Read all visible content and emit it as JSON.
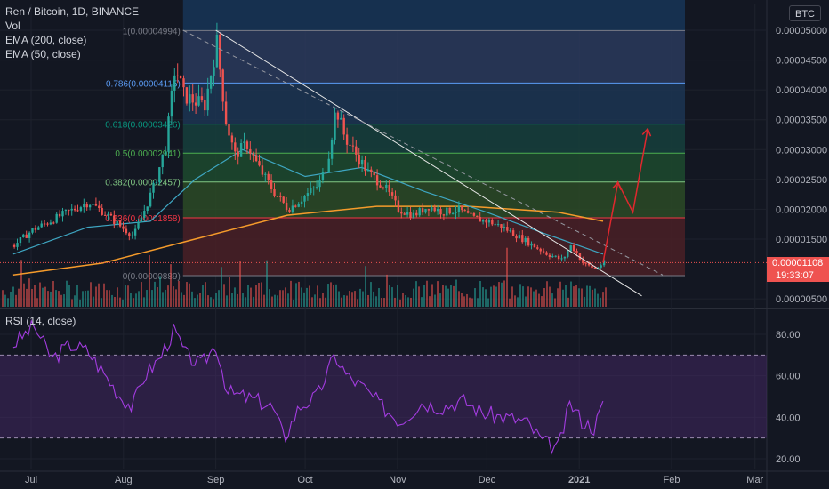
{
  "header": {
    "symbol_line": "Ren / Bitcoin, 1D, BINANCE",
    "indicators": [
      "Vol",
      "EMA (200, close)",
      "EMA (50, close)"
    ],
    "currency_badge": "BTC",
    "rsi_label": "RSI (14, close)"
  },
  "price_tag": {
    "value": "0.00001108",
    "countdown": "19:33:07"
  },
  "colors": {
    "background": "#131722",
    "up": "#26a69a",
    "down": "#ef5350",
    "ema50": "#3ea6c2",
    "ema200": "#f59b2b",
    "rsi_line": "#a33ce0",
    "rsi_band": "#4b2a6e",
    "projection": "#e0282e",
    "trendline": "#e8e8e8"
  },
  "chart_data": [
    {
      "type": "candlestick",
      "title": "Ren / Bitcoin, 1D, BINANCE",
      "x_ticks": [
        "Jul",
        "Aug",
        "Sep",
        "Oct",
        "Nov",
        "Dec",
        "2021",
        "Feb",
        "Mar"
      ],
      "y_ticks": [
        "0.00005000",
        "0.00004500",
        "0.00004000",
        "0.00003500",
        "0.00003000",
        "0.00002500",
        "0.00002000",
        "0.00001500",
        "0.00000500"
      ],
      "ylim": [
        4.5e-06,
        5.13e-05
      ],
      "scale": "linear",
      "grid": true,
      "price_series": [
        {
          "date": "2020-06-25",
          "close": 1.4e-05
        },
        {
          "date": "2020-07-01",
          "close": 1.65e-05
        },
        {
          "date": "2020-07-05",
          "close": 1.75e-05
        },
        {
          "date": "2020-07-10",
          "close": 1.88e-05
        },
        {
          "date": "2020-07-15",
          "close": 2e-05
        },
        {
          "date": "2020-07-20",
          "close": 2.12e-05
        },
        {
          "date": "2020-07-25",
          "close": 1.95e-05
        },
        {
          "date": "2020-07-31",
          "close": 1.7e-05
        },
        {
          "date": "2020-08-04",
          "close": 1.55e-05
        },
        {
          "date": "2020-08-07",
          "close": 1.9e-05
        },
        {
          "date": "2020-08-11",
          "close": 2.4e-05
        },
        {
          "date": "2020-08-15",
          "close": 3.1e-05
        },
        {
          "date": "2020-08-18",
          "close": 4.4e-05
        },
        {
          "date": "2020-08-21",
          "close": 3.9e-05
        },
        {
          "date": "2020-08-25",
          "close": 3.8e-05
        },
        {
          "date": "2020-08-28",
          "close": 3.75e-05
        },
        {
          "date": "2020-09-01",
          "close": 4.8e-05
        },
        {
          "date": "2020-09-04",
          "close": 3.5e-05
        },
        {
          "date": "2020-09-07",
          "close": 2.9e-05
        },
        {
          "date": "2020-09-11",
          "close": 3.1e-05
        },
        {
          "date": "2020-09-15",
          "close": 2.7e-05
        },
        {
          "date": "2020-09-20",
          "close": 2.3e-05
        },
        {
          "date": "2020-09-25",
          "close": 2e-05
        },
        {
          "date": "2020-09-30",
          "close": 2.2e-05
        },
        {
          "date": "2020-10-05",
          "close": 2.4e-05
        },
        {
          "date": "2020-10-08",
          "close": 2.75e-05
        },
        {
          "date": "2020-10-11",
          "close": 3.7e-05
        },
        {
          "date": "2020-10-14",
          "close": 3.2e-05
        },
        {
          "date": "2020-10-18",
          "close": 2.9e-05
        },
        {
          "date": "2020-10-22",
          "close": 2.6e-05
        },
        {
          "date": "2020-10-27",
          "close": 2.4e-05
        },
        {
          "date": "2020-11-01",
          "close": 2e-05
        },
        {
          "date": "2020-11-06",
          "close": 1.9e-05
        },
        {
          "date": "2020-11-11",
          "close": 2.05e-05
        },
        {
          "date": "2020-11-16",
          "close": 1.95e-05
        },
        {
          "date": "2020-11-21",
          "close": 2e-05
        },
        {
          "date": "2020-11-26",
          "close": 1.85e-05
        },
        {
          "date": "2020-12-01",
          "close": 1.8e-05
        },
        {
          "date": "2020-12-06",
          "close": 1.7e-05
        },
        {
          "date": "2020-12-11",
          "close": 1.55e-05
        },
        {
          "date": "2020-12-16",
          "close": 1.4e-05
        },
        {
          "date": "2020-12-21",
          "close": 1.25e-05
        },
        {
          "date": "2020-12-26",
          "close": 1.15e-05
        },
        {
          "date": "2020-12-29",
          "close": 1.4e-05
        },
        {
          "date": "2021-01-02",
          "close": 1.1e-05
        },
        {
          "date": "2021-01-06",
          "close": 1e-05
        },
        {
          "date": "2021-01-09",
          "close": 1.11e-05
        }
      ],
      "ema50": [
        {
          "date": "2020-06-25",
          "value": 1.25e-05
        },
        {
          "date": "2020-07-20",
          "value": 1.7e-05
        },
        {
          "date": "2020-08-10",
          "value": 1.8e-05
        },
        {
          "date": "2020-08-25",
          "value": 2.5e-05
        },
        {
          "date": "2020-09-10",
          "value": 3e-05
        },
        {
          "date": "2020-10-01",
          "value": 2.55e-05
        },
        {
          "date": "2020-10-20",
          "value": 2.7e-05
        },
        {
          "date": "2020-11-10",
          "value": 2.3e-05
        },
        {
          "date": "2020-12-01",
          "value": 1.95e-05
        },
        {
          "date": "2020-12-20",
          "value": 1.6e-05
        },
        {
          "date": "2021-01-09",
          "value": 1.25e-05
        }
      ],
      "ema200": [
        {
          "date": "2020-06-25",
          "value": 9e-06
        },
        {
          "date": "2020-07-25",
          "value": 1.1e-05
        },
        {
          "date": "2020-08-25",
          "value": 1.5e-05
        },
        {
          "date": "2020-09-25",
          "value": 1.9e-05
        },
        {
          "date": "2020-10-25",
          "value": 2.05e-05
        },
        {
          "date": "2020-11-25",
          "value": 2.05e-05
        },
        {
          "date": "2020-12-25",
          "value": 1.95e-05
        },
        {
          "date": "2021-01-09",
          "value": 1.8e-05
        }
      ],
      "fib_levels": [
        {
          "ratio": "1",
          "label": "1(0.00004994)",
          "price": 4.994e-05,
          "color": "#787b86"
        },
        {
          "ratio": "0.786",
          "label": "0.786(0.00004115)",
          "price": 4.115e-05,
          "color": "#5b9cf6"
        },
        {
          "ratio": "0.618",
          "label": "0.618(0.00003426)",
          "price": 3.426e-05,
          "color": "#089981"
        },
        {
          "ratio": "0.5",
          "label": "0.5(0.00002941)",
          "price": 2.941e-05,
          "color": "#4caf50"
        },
        {
          "ratio": "0.382",
          "label": "0.382(0.00002457)",
          "price": 2.457e-05,
          "color": "#81c784"
        },
        {
          "ratio": "0.236",
          "label": "0.236(0.00001858)",
          "price": 1.858e-05,
          "color": "#f23645"
        },
        {
          "ratio": "0",
          "label": "0(0.00000889)",
          "price": 8.89e-06,
          "color": "#787b86"
        }
      ],
      "trendlines": [
        {
          "style": "solid",
          "from": {
            "date": "2020-09-01",
            "price": 5e-05
          },
          "to": {
            "date": "2021-01-22",
            "price": 5.5e-06
          }
        },
        {
          "style": "dashed",
          "from": {
            "date": "2020-08-21",
            "price": 5e-05
          },
          "to": {
            "date": "2021-01-29",
            "price": 9e-06
          }
        }
      ],
      "projection": [
        {
          "date": "2021-01-09",
          "price": 1.11e-05
        },
        {
          "date": "2021-01-14",
          "price": 2.45e-05
        },
        {
          "date": "2021-01-19",
          "price": 1.95e-05
        },
        {
          "date": "2021-01-24",
          "price": 3.35e-05
        }
      ],
      "last_price": "0.00001108",
      "countdown": "19:33:07"
    },
    {
      "type": "line",
      "title": "RSI (14, close)",
      "y_ticks": [
        "80.00",
        "60.00",
        "40.00",
        "20.00"
      ],
      "ylim": [
        17,
        90
      ],
      "band": [
        30,
        70
      ],
      "grid": true,
      "rsi_series": [
        {
          "date": "2020-06-25",
          "value": 75
        },
        {
          "date": "2020-07-02",
          "value": 84
        },
        {
          "date": "2020-07-08",
          "value": 68
        },
        {
          "date": "2020-07-14",
          "value": 75
        },
        {
          "date": "2020-07-20",
          "value": 72
        },
        {
          "date": "2020-07-26",
          "value": 60
        },
        {
          "date": "2020-07-31",
          "value": 50
        },
        {
          "date": "2020-08-04",
          "value": 45
        },
        {
          "date": "2020-08-08",
          "value": 60
        },
        {
          "date": "2020-08-13",
          "value": 68
        },
        {
          "date": "2020-08-18",
          "value": 82
        },
        {
          "date": "2020-08-22",
          "value": 70
        },
        {
          "date": "2020-08-27",
          "value": 65
        },
        {
          "date": "2020-09-01",
          "value": 75
        },
        {
          "date": "2020-09-05",
          "value": 52
        },
        {
          "date": "2020-09-10",
          "value": 50
        },
        {
          "date": "2020-09-15",
          "value": 48
        },
        {
          "date": "2020-09-20",
          "value": 45
        },
        {
          "date": "2020-09-24",
          "value": 30
        },
        {
          "date": "2020-09-29",
          "value": 45
        },
        {
          "date": "2020-10-05",
          "value": 50
        },
        {
          "date": "2020-10-11",
          "value": 70
        },
        {
          "date": "2020-10-15",
          "value": 60
        },
        {
          "date": "2020-10-20",
          "value": 55
        },
        {
          "date": "2020-10-27",
          "value": 45
        },
        {
          "date": "2020-11-02",
          "value": 38
        },
        {
          "date": "2020-11-09",
          "value": 47
        },
        {
          "date": "2020-11-16",
          "value": 45
        },
        {
          "date": "2020-11-23",
          "value": 48
        },
        {
          "date": "2020-11-30",
          "value": 42
        },
        {
          "date": "2020-12-07",
          "value": 40
        },
        {
          "date": "2020-12-14",
          "value": 38
        },
        {
          "date": "2020-12-20",
          "value": 28
        },
        {
          "date": "2020-12-25",
          "value": 25
        },
        {
          "date": "2020-12-29",
          "value": 47
        },
        {
          "date": "2021-01-02",
          "value": 38
        },
        {
          "date": "2021-01-06",
          "value": 35
        },
        {
          "date": "2021-01-09",
          "value": 46
        }
      ]
    }
  ]
}
